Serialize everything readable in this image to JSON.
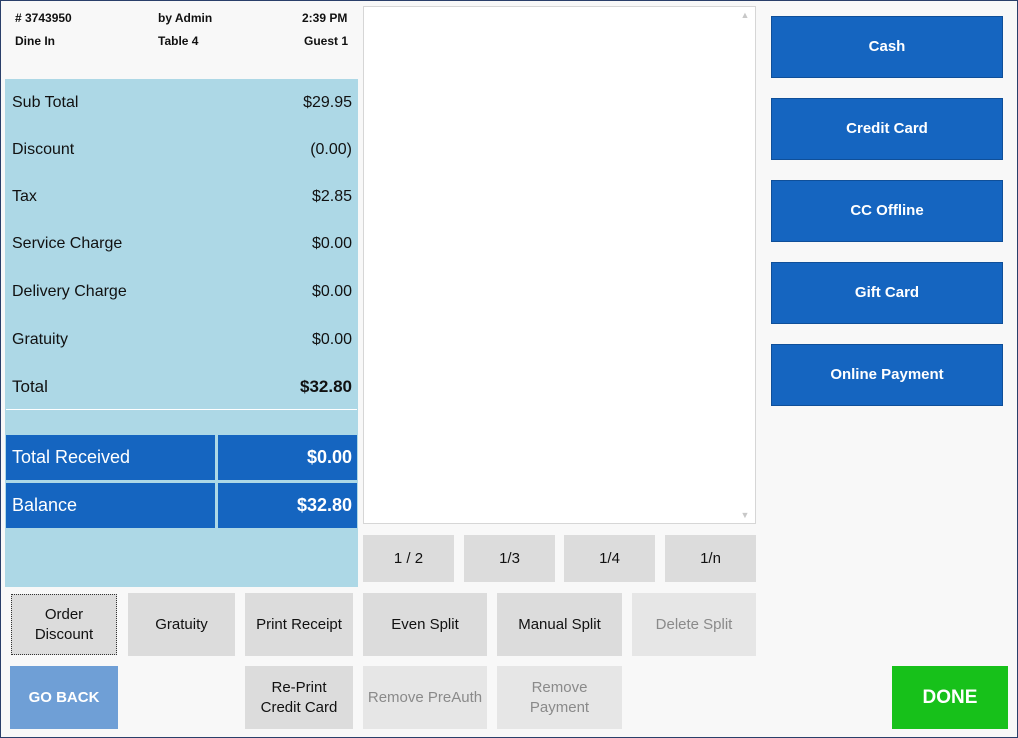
{
  "header": {
    "order_number": "# 3743950",
    "by_user": "by Admin",
    "time": "2:39 PM",
    "order_type": "Dine In",
    "table": "Table 4",
    "guest": "Guest 1"
  },
  "summary": {
    "rows": [
      {
        "label": "Sub Total",
        "value": "$29.95"
      },
      {
        "label": "Discount",
        "value": "(0.00)"
      },
      {
        "label": "Tax",
        "value": "$2.85"
      },
      {
        "label": "Service Charge",
        "value": "$0.00"
      },
      {
        "label": "Delivery Charge",
        "value": "$0.00"
      },
      {
        "label": "Gratuity",
        "value": "$0.00"
      }
    ],
    "total_label": "Total",
    "total_value": "$32.80",
    "received_label": "Total Received",
    "received_value": "$0.00",
    "balance_label": "Balance",
    "balance_value": "$32.80"
  },
  "split_fractions": [
    "1 / 2",
    "1/3",
    "1/4",
    "1/n"
  ],
  "payment_methods": [
    "Cash",
    "Credit Card",
    "CC Offline",
    "Gift Card",
    "Online Payment"
  ],
  "actions": {
    "order_discount": [
      "Order",
      "Discount"
    ],
    "gratuity": "Gratuity",
    "print_receipt": "Print Receipt",
    "even_split": "Even Split",
    "manual_split": "Manual Split",
    "delete_split": "Delete Split",
    "go_back": "GO BACK",
    "reprint_credit_card": [
      "Re-Print",
      "Credit Card"
    ],
    "remove_preauth": "Remove PreAuth",
    "remove_payment": [
      "Remove",
      "Payment"
    ],
    "done": "DONE"
  },
  "icons": {
    "scroll_up": "scroll-up-arrow-icon",
    "scroll_down": "scroll-down-arrow-icon"
  },
  "colors": {
    "summary_bg": "#add8e6",
    "primary_blue": "#1565c0",
    "go_back_blue": "#6f9fd6",
    "done_green": "#17c11a"
  }
}
